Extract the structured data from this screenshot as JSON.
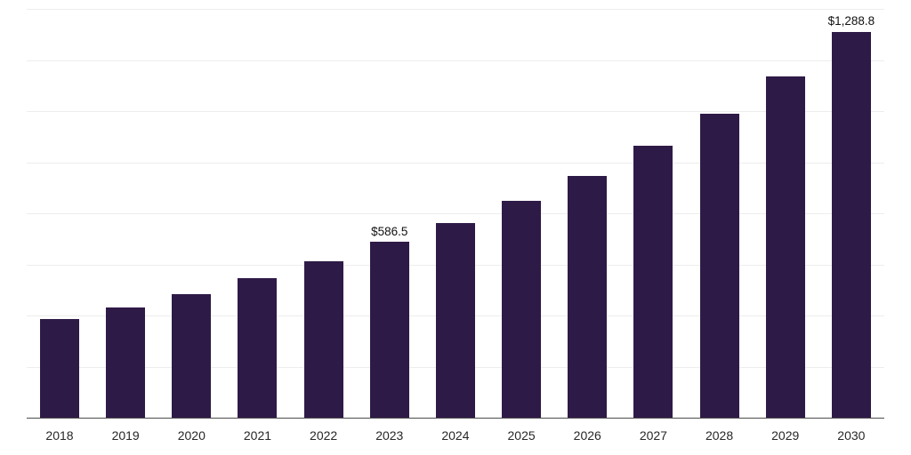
{
  "chart_data": {
    "type": "bar",
    "title": "",
    "xlabel": "",
    "ylabel": "",
    "categories": [
      "2018",
      "2019",
      "2020",
      "2021",
      "2022",
      "2023",
      "2024",
      "2025",
      "2026",
      "2027",
      "2028",
      "2029",
      "2030"
    ],
    "values": [
      330,
      368,
      414,
      465,
      522,
      586.5,
      651,
      724,
      806,
      908,
      1016,
      1140,
      1288.8
    ],
    "data_labels": [
      "",
      "",
      "",
      "",
      "",
      "$586.5",
      "",
      "",
      "",
      "",
      "",
      "",
      "$1,288.8"
    ],
    "ylim": [
      0,
      1365
    ],
    "grid": true,
    "gridline_count": 8,
    "legend": false,
    "bar_color": "#2e1a47",
    "gridline_color": "#ededed",
    "axis_line_color": "#4d4d4d",
    "tick_label_color": "#272727",
    "data_label_color": "#111111"
  }
}
